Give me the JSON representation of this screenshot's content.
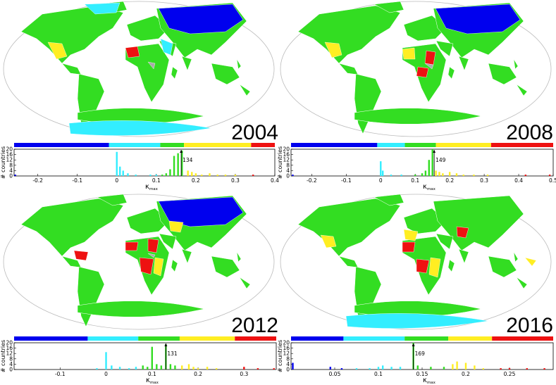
{
  "colors": {
    "blue": "#0000ee",
    "cyan": "#33eeff",
    "green": "#33dd22",
    "yellow": "#ffee22",
    "red": "#ee1111",
    "gray": "#aaaaaa",
    "land_border": "#ffffff",
    "globe_outline": "#bbbbbb"
  },
  "chart_data": [
    {
      "type": "bar",
      "year_label": "2004",
      "xlabel": "κ",
      "xlabel_sub": "max",
      "ylabel": "# countries",
      "xlim": [
        -0.26,
        0.4
      ],
      "ylim": [
        0,
        20
      ],
      "xticks": [
        -0.2,
        -0.1,
        0,
        0.1,
        0.2,
        0.3,
        0.4
      ],
      "xtick_labels": [
        "-0.2",
        "-0.1",
        "0",
        "0.1",
        "0.2",
        "0.3",
        "0.4"
      ],
      "yticks": [
        0,
        4,
        8,
        12,
        16,
        20
      ],
      "colorbar_breaks": [
        -0.26,
        -0.02,
        0.11,
        0.17,
        0.34,
        0.4
      ],
      "marker": {
        "x": 0.163,
        "label": "134"
      },
      "bars": [
        {
          "x": -0.257,
          "y": 1,
          "c": "blue"
        },
        {
          "x": 0.0,
          "y": 18,
          "c": "cyan"
        },
        {
          "x": 0.008,
          "y": 7,
          "c": "cyan"
        },
        {
          "x": 0.016,
          "y": 4,
          "c": "cyan"
        },
        {
          "x": 0.028,
          "y": 2,
          "c": "cyan"
        },
        {
          "x": 0.048,
          "y": 1,
          "c": "cyan"
        },
        {
          "x": 0.085,
          "y": 1,
          "c": "cyan"
        },
        {
          "x": 0.1,
          "y": 1,
          "c": "cyan"
        },
        {
          "x": 0.115,
          "y": 1,
          "c": "green"
        },
        {
          "x": 0.125,
          "y": 2,
          "c": "green"
        },
        {
          "x": 0.135,
          "y": 5,
          "c": "green"
        },
        {
          "x": 0.145,
          "y": 15,
          "c": "green"
        },
        {
          "x": 0.155,
          "y": 17,
          "c": "green"
        },
        {
          "x": 0.165,
          "y": 19,
          "c": "green"
        },
        {
          "x": 0.18,
          "y": 4,
          "c": "yellow"
        },
        {
          "x": 0.19,
          "y": 3,
          "c": "yellow"
        },
        {
          "x": 0.2,
          "y": 2,
          "c": "yellow"
        },
        {
          "x": 0.215,
          "y": 1,
          "c": "yellow"
        },
        {
          "x": 0.235,
          "y": 2,
          "c": "yellow"
        },
        {
          "x": 0.255,
          "y": 1,
          "c": "yellow"
        },
        {
          "x": 0.275,
          "y": 1,
          "c": "yellow"
        },
        {
          "x": 0.3,
          "y": 1,
          "c": "yellow"
        },
        {
          "x": 0.345,
          "y": 1,
          "c": "red"
        }
      ]
    },
    {
      "type": "bar",
      "year_label": "2008",
      "xlabel": "κ",
      "xlabel_sub": "max",
      "ylabel": "# countries",
      "xlim": [
        -0.26,
        0.5
      ],
      "ylim": [
        0,
        20
      ],
      "xticks": [
        -0.2,
        -0.1,
        0,
        0.1,
        0.2,
        0.3,
        0.4,
        0.5
      ],
      "xtick_labels": [
        "-0.2",
        "-0.1",
        "0",
        "0.1",
        "0.2",
        "0.3",
        "0.4",
        "0.5"
      ],
      "yticks": [
        0,
        4,
        8,
        12,
        16,
        20
      ],
      "colorbar_breaks": [
        -0.26,
        -0.01,
        0.07,
        0.16,
        0.32,
        0.5
      ],
      "marker": {
        "x": 0.155,
        "label": "149"
      },
      "bars": [
        {
          "x": -0.255,
          "y": 1,
          "c": "blue"
        },
        {
          "x": 0.0,
          "y": 11,
          "c": "cyan"
        },
        {
          "x": 0.006,
          "y": 4,
          "c": "cyan"
        },
        {
          "x": 0.03,
          "y": 1,
          "c": "cyan"
        },
        {
          "x": 0.06,
          "y": 1,
          "c": "cyan"
        },
        {
          "x": 0.1,
          "y": 1,
          "c": "green"
        },
        {
          "x": 0.12,
          "y": 2,
          "c": "green"
        },
        {
          "x": 0.13,
          "y": 4,
          "c": "green"
        },
        {
          "x": 0.14,
          "y": 12,
          "c": "green"
        },
        {
          "x": 0.15,
          "y": 20,
          "c": "green"
        },
        {
          "x": 0.16,
          "y": 4,
          "c": "yellow"
        },
        {
          "x": 0.17,
          "y": 3,
          "c": "yellow"
        },
        {
          "x": 0.18,
          "y": 2,
          "c": "yellow"
        },
        {
          "x": 0.2,
          "y": 3,
          "c": "yellow"
        },
        {
          "x": 0.22,
          "y": 2,
          "c": "yellow"
        },
        {
          "x": 0.24,
          "y": 1,
          "c": "yellow"
        },
        {
          "x": 0.27,
          "y": 1,
          "c": "yellow"
        },
        {
          "x": 0.31,
          "y": 1,
          "c": "yellow"
        },
        {
          "x": 0.42,
          "y": 1,
          "c": "red"
        },
        {
          "x": 0.49,
          "y": 1,
          "c": "red"
        }
      ]
    },
    {
      "type": "bar",
      "year_label": "2012",
      "xlabel": "κ",
      "xlabel_sub": "max",
      "ylabel": "# countries",
      "xlim": [
        -0.2,
        0.37
      ],
      "ylim": [
        0,
        20
      ],
      "xticks": [
        -0.1,
        0,
        0.1,
        0.2,
        0.3
      ],
      "xtick_labels": [
        "-0.1",
        "0",
        "0.1",
        "0.2",
        "0.3"
      ],
      "yticks": [
        0,
        4,
        8,
        12,
        16,
        20
      ],
      "colorbar_breaks": [
        -0.2,
        -0.04,
        0.07,
        0.16,
        0.28,
        0.37
      ],
      "marker": {
        "x": 0.13,
        "label": "131"
      },
      "bars": [
        {
          "x": -0.02,
          "y": 1,
          "c": "cyan"
        },
        {
          "x": 0.0,
          "y": 13,
          "c": "cyan"
        },
        {
          "x": 0.012,
          "y": 3,
          "c": "cyan"
        },
        {
          "x": 0.03,
          "y": 2,
          "c": "cyan"
        },
        {
          "x": 0.05,
          "y": 1,
          "c": "cyan"
        },
        {
          "x": 0.065,
          "y": 2,
          "c": "cyan"
        },
        {
          "x": 0.08,
          "y": 3,
          "c": "green"
        },
        {
          "x": 0.09,
          "y": 2,
          "c": "green"
        },
        {
          "x": 0.1,
          "y": 17,
          "c": "green"
        },
        {
          "x": 0.11,
          "y": 4,
          "c": "green"
        },
        {
          "x": 0.12,
          "y": 3,
          "c": "green"
        },
        {
          "x": 0.13,
          "y": 19,
          "c": "green"
        },
        {
          "x": 0.14,
          "y": 4,
          "c": "green"
        },
        {
          "x": 0.15,
          "y": 3,
          "c": "green"
        },
        {
          "x": 0.165,
          "y": 3,
          "c": "yellow"
        },
        {
          "x": 0.18,
          "y": 4,
          "c": "yellow"
        },
        {
          "x": 0.19,
          "y": 2,
          "c": "yellow"
        },
        {
          "x": 0.2,
          "y": 1,
          "c": "yellow"
        },
        {
          "x": 0.22,
          "y": 2,
          "c": "yellow"
        },
        {
          "x": 0.24,
          "y": 1,
          "c": "yellow"
        },
        {
          "x": 0.3,
          "y": 2,
          "c": "red"
        },
        {
          "x": 0.33,
          "y": 1,
          "c": "red"
        },
        {
          "x": 0.365,
          "y": 1,
          "c": "red"
        }
      ]
    },
    {
      "type": "bar",
      "year_label": "2016",
      "xlabel": "κ",
      "xlabel_sub": "max",
      "ylabel": "# countries",
      "xlim": [
        0.0,
        0.3
      ],
      "ylim": [
        0,
        20
      ],
      "xticks": [
        0.05,
        0.1,
        0.15,
        0.2,
        0.25
      ],
      "xtick_labels": [
        "0.05",
        "0.1",
        "0.15",
        "0.2",
        "0.25"
      ],
      "yticks": [
        0,
        4,
        8,
        12,
        16,
        20
      ],
      "colorbar_breaks": [
        0.0,
        0.06,
        0.13,
        0.18,
        0.23,
        0.3
      ],
      "marker": {
        "x": 0.14,
        "label": "169"
      },
      "bars": [
        {
          "x": 0.002,
          "y": 5,
          "c": "blue"
        },
        {
          "x": 0.045,
          "y": 2,
          "c": "blue"
        },
        {
          "x": 0.058,
          "y": 1,
          "c": "blue"
        },
        {
          "x": 0.075,
          "y": 1,
          "c": "cyan"
        },
        {
          "x": 0.09,
          "y": 1,
          "c": "cyan"
        },
        {
          "x": 0.1,
          "y": 2,
          "c": "cyan"
        },
        {
          "x": 0.105,
          "y": 3,
          "c": "cyan"
        },
        {
          "x": 0.115,
          "y": 2,
          "c": "cyan"
        },
        {
          "x": 0.125,
          "y": 2,
          "c": "cyan"
        },
        {
          "x": 0.14,
          "y": 20,
          "c": "green"
        },
        {
          "x": 0.145,
          "y": 3,
          "c": "green"
        },
        {
          "x": 0.16,
          "y": 2,
          "c": "green"
        },
        {
          "x": 0.175,
          "y": 2,
          "c": "green"
        },
        {
          "x": 0.185,
          "y": 4,
          "c": "yellow"
        },
        {
          "x": 0.19,
          "y": 6,
          "c": "yellow"
        },
        {
          "x": 0.2,
          "y": 5,
          "c": "yellow"
        },
        {
          "x": 0.21,
          "y": 3,
          "c": "yellow"
        },
        {
          "x": 0.22,
          "y": 1,
          "c": "yellow"
        },
        {
          "x": 0.24,
          "y": 1,
          "c": "red"
        },
        {
          "x": 0.25,
          "y": 1,
          "c": "red"
        },
        {
          "x": 0.27,
          "y": 1,
          "c": "red"
        },
        {
          "x": 0.29,
          "y": 1,
          "c": "red"
        }
      ]
    }
  ]
}
